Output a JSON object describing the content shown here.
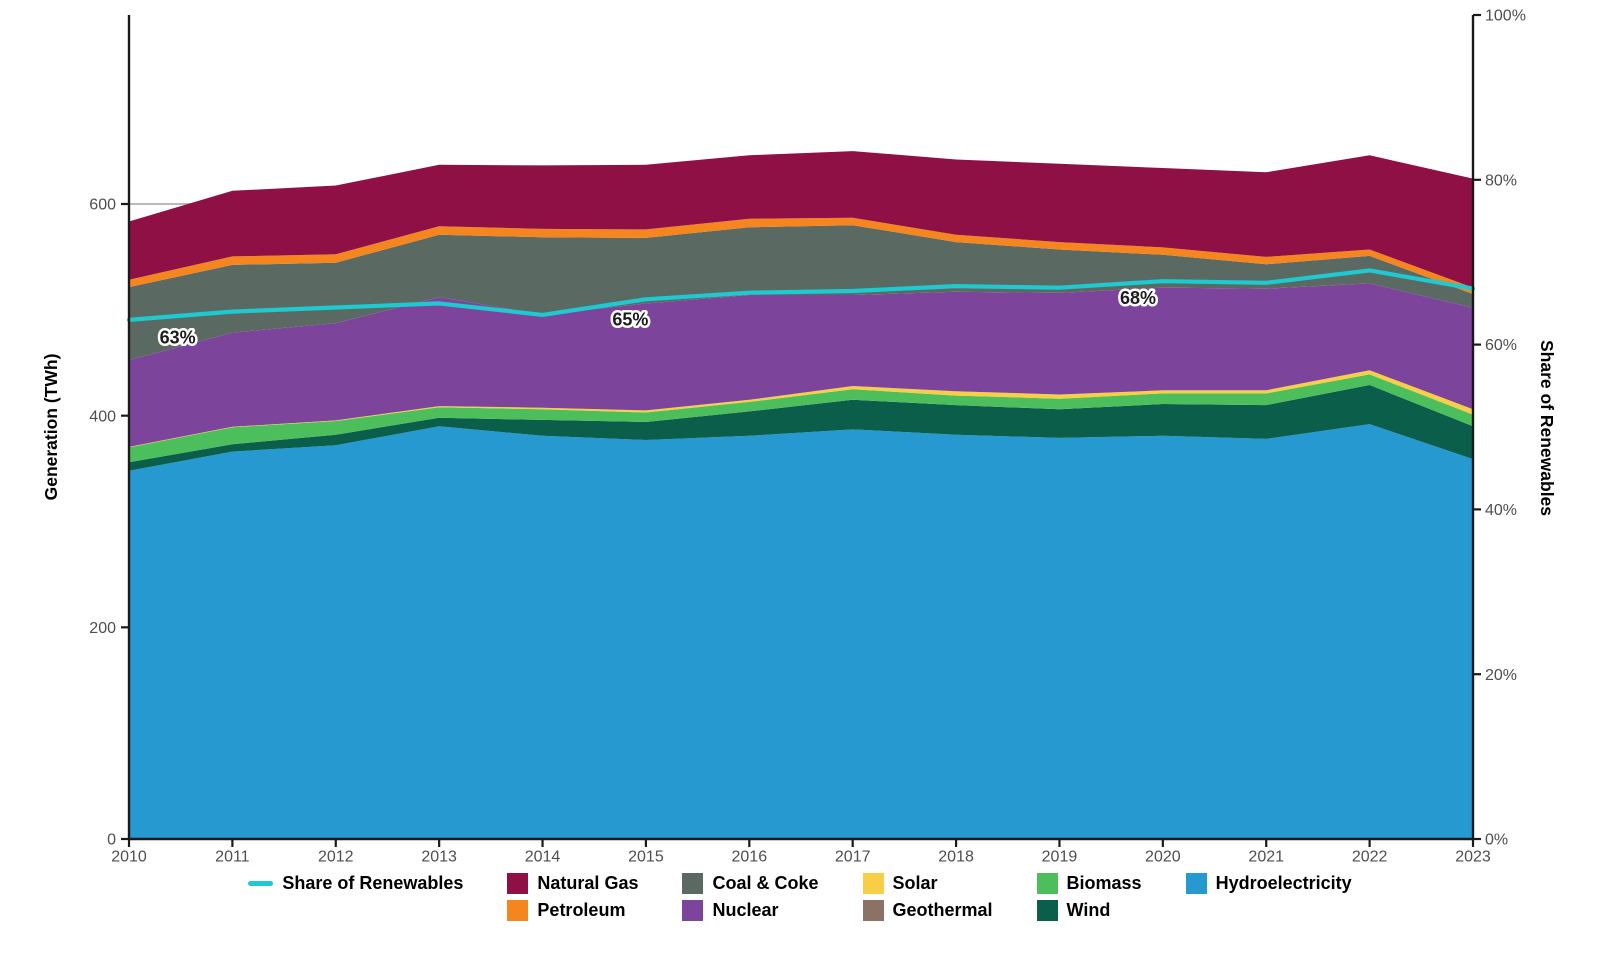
{
  "chart_data": {
    "type": "area",
    "title": "",
    "x": [
      2010,
      2011,
      2012,
      2013,
      2014,
      2015,
      2016,
      2017,
      2018,
      2019,
      2020,
      2021,
      2022,
      2023
    ],
    "stack_note": "series listed bottom-to-top of stack, values in TWh",
    "series": [
      {
        "name": "Hydroelectricity",
        "color": "#2699D1",
        "values": [
          348,
          366,
          372,
          390,
          381,
          377,
          381,
          387,
          382,
          379,
          381,
          378,
          392,
          359
        ]
      },
      {
        "name": "Wind",
        "color": "#0B5E49",
        "values": [
          8,
          7,
          10,
          8,
          15,
          17,
          23,
          28,
          28,
          27,
          30,
          32,
          37,
          31
        ]
      },
      {
        "name": "Biomass",
        "color": "#4DBE5C",
        "values": [
          14,
          16,
          13,
          10,
          10,
          9,
          9,
          10,
          9,
          10,
          10,
          11,
          10,
          11
        ]
      },
      {
        "name": "Geothermal",
        "color": "#8C7167",
        "values": [
          0,
          0,
          0,
          0,
          0,
          0,
          0,
          0,
          0,
          0,
          0,
          0,
          0,
          0
        ]
      },
      {
        "name": "Solar",
        "color": "#F7CE46",
        "values": [
          0.5,
          0.5,
          0.5,
          1,
          1.5,
          2,
          2,
          3,
          4,
          4,
          3,
          3,
          4,
          5
        ]
      },
      {
        "name": "Nuclear",
        "color": "#7D449C",
        "values": [
          82,
          89,
          92,
          103,
          88,
          101,
          99,
          86,
          94,
          96,
          97,
          96,
          82,
          96
        ]
      },
      {
        "name": "Coal & Coke",
        "color": "#5A6A63",
        "values": [
          69,
          64,
          57,
          59,
          73,
          62,
          64,
          66,
          47,
          41,
          31,
          23,
          26,
          13
        ]
      },
      {
        "name": "Petroleum",
        "color": "#F5851F",
        "values": [
          7,
          8,
          8,
          8,
          8,
          8,
          8,
          7,
          7,
          7,
          7,
          7,
          6,
          6
        ]
      },
      {
        "name": "Natural Gas",
        "color": "#8E1044",
        "values": [
          55,
          62,
          65,
          58,
          60,
          61,
          60,
          63,
          71,
          74,
          75,
          80,
          89,
          103
        ]
      }
    ],
    "line": {
      "name": "Share of Renewables",
      "color": "#1EC9CF",
      "axis": "right",
      "values_pct": [
        63.0,
        64.0,
        64.5,
        65.0,
        63.6,
        65.5,
        66.3,
        66.5,
        67.1,
        66.9,
        67.7,
        67.5,
        69.0,
        66.8
      ]
    },
    "annotations": [
      {
        "text": "63%",
        "year": 2010.47,
        "pct": 60.9
      },
      {
        "text": "65%",
        "year": 2014.85,
        "pct": 63.1
      },
      {
        "text": "68%",
        "year": 2019.76,
        "pct": 65.7
      }
    ],
    "axes": {
      "left": {
        "title": "Generation (TWh)",
        "ticks": [
          0,
          200,
          400,
          600
        ]
      },
      "right": {
        "title": "Share of Renewables",
        "ticks": [
          0,
          20,
          40,
          60,
          80,
          100
        ],
        "tick_suffix": "%"
      },
      "x": {
        "ticks": [
          "2010",
          "2011",
          "2012",
          "2013",
          "2014",
          "2015",
          "2016",
          "2017",
          "2018",
          "2019",
          "2020",
          "2021",
          "2022",
          "2023"
        ]
      }
    },
    "gridline_value_twh": 600,
    "legend_position": "bottom"
  },
  "legend": {
    "columns": [
      [
        {
          "label": "Share of Renewables",
          "type": "line",
          "color": "#1EC9CF"
        }
      ],
      [
        {
          "label": "Natural Gas",
          "type": "square",
          "color": "#8E1044"
        },
        {
          "label": "Petroleum",
          "type": "square",
          "color": "#F5851F"
        }
      ],
      [
        {
          "label": "Coal & Coke",
          "type": "square",
          "color": "#5A6A63"
        },
        {
          "label": "Nuclear",
          "type": "square",
          "color": "#7D449C"
        }
      ],
      [
        {
          "label": "Solar",
          "type": "square",
          "color": "#F7CE46"
        },
        {
          "label": "Geothermal",
          "type": "square",
          "color": "#8C7167"
        }
      ],
      [
        {
          "label": "Biomass",
          "type": "square",
          "color": "#4DBE5C"
        },
        {
          "label": "Wind",
          "type": "square",
          "color": "#0B5E49"
        }
      ],
      [
        {
          "label": "Hydroelectricity",
          "type": "square",
          "color": "#2699D1"
        }
      ]
    ]
  }
}
